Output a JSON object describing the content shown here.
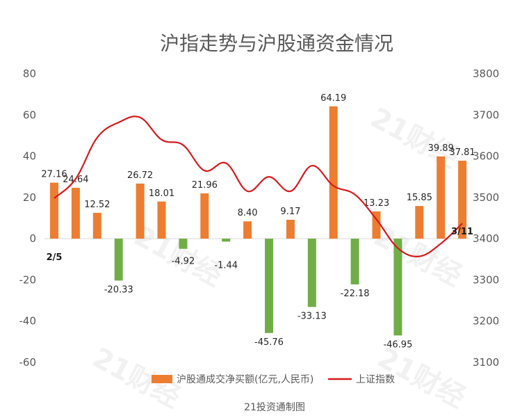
{
  "chart_data": {
    "type": "bar+line",
    "title": "沪指走势与沪股通资金情况",
    "categories": [
      "2/5",
      "",
      "",
      "",
      "",
      "",
      "",
      "",
      "",
      "",
      "",
      "",
      "",
      "",
      "",
      "",
      "",
      "",
      "",
      "3/11"
    ],
    "series": [
      {
        "name": "沪股通成交净买额(亿元,人民币)",
        "type": "bar",
        "axis": "left",
        "values": [
          27.16,
          24.64,
          12.52,
          -20.33,
          26.72,
          18.01,
          -4.92,
          21.96,
          -1.44,
          8.4,
          -45.76,
          9.17,
          -33.13,
          64.19,
          -22.18,
          13.23,
          -46.95,
          15.85,
          39.89,
          37.81
        ],
        "labels": [
          "27.16",
          "24.64",
          "12.52",
          "-20.33",
          "26.72",
          "18.01",
          "-4.92",
          "21.96",
          "-1.44",
          "8.40",
          "-45.76",
          "9.17",
          "-33.13",
          "64.19",
          "-22.18",
          "13.23",
          "-46.95",
          "15.85",
          "39.89",
          "37.81"
        ],
        "positive_color": "#ed7d31",
        "negative_color": "#70ad47"
      },
      {
        "name": "上证指数",
        "type": "line",
        "axis": "right",
        "values": [
          3498,
          3545,
          3645,
          3682,
          3694,
          3640,
          3627,
          3565,
          3583,
          3515,
          3550,
          3515,
          3577,
          3528,
          3507,
          3447,
          3377,
          3357,
          3388,
          3437
        ],
        "color": "#d7191c"
      }
    ],
    "y_left": {
      "min": -60,
      "max": 80,
      "step": 20,
      "ticks": [
        "80",
        "60",
        "40",
        "20",
        "0",
        "-20",
        "-40",
        "-60"
      ]
    },
    "y_right": {
      "min": 3100,
      "max": 3800,
      "step": 100,
      "ticks": [
        "3800",
        "3700",
        "3600",
        "3500",
        "3400",
        "3300",
        "3200",
        "3100"
      ]
    },
    "annotations": {
      "start": "2/5",
      "end": "3/11"
    },
    "legend": {
      "position": "bottom"
    },
    "grid": false,
    "source": "21投资通制图",
    "watermark": "21财经"
  }
}
